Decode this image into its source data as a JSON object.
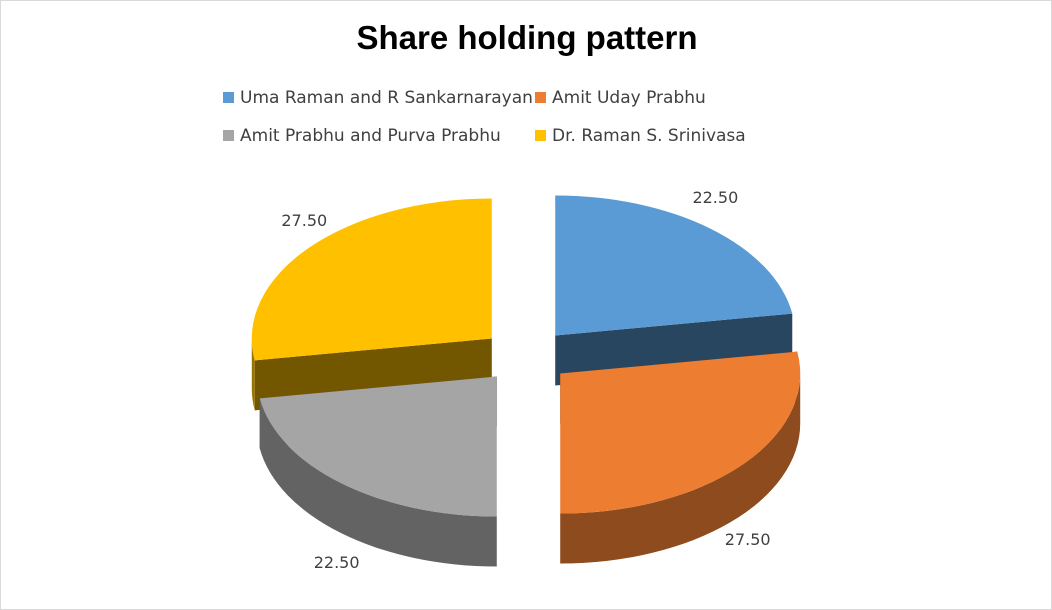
{
  "chart_data": {
    "type": "pie",
    "title": "Share holding pattern",
    "categories": [
      "Uma Raman and R Sankarnarayan",
      "Amit Uday Prabhu",
      "Amit Prabhu and Purva Prabhu",
      "Dr. Raman S. Srinivasa"
    ],
    "values": [
      22.5,
      27.5,
      22.5,
      27.5
    ],
    "data_labels": [
      "22.50",
      "27.50",
      "22.50",
      "27.50"
    ],
    "colors": [
      "#5b9bd5",
      "#ed7d31",
      "#a5a5a5",
      "#ffc000"
    ],
    "legend_position": "top",
    "style": "3d-exploded"
  }
}
